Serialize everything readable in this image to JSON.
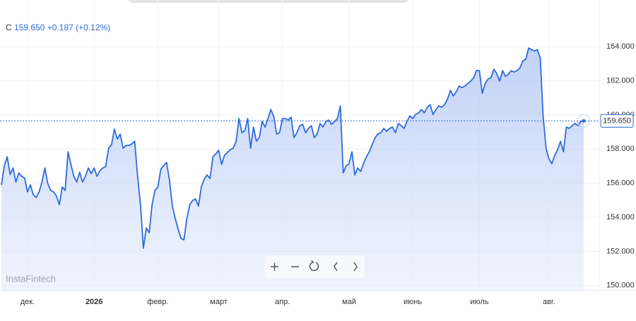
{
  "header": {
    "symbol": "C",
    "price": "159.650",
    "change": "+0.187",
    "change_pct": "(+0.12%)"
  },
  "watermark": "InstaFintech",
  "chart_data": {
    "type": "area",
    "series": [
      {
        "color": "#2f6bdc",
        "values": [
          155.9,
          157.02,
          157.55,
          156.52,
          156.89,
          156.07,
          156.6,
          156.4,
          156.31,
          155.49,
          155.9,
          155.32,
          155.16,
          155.49,
          156.07,
          156.89,
          155.98,
          155.57,
          155.49,
          155.24,
          154.74,
          155.78,
          155.57,
          157.84,
          157.1,
          156.4,
          156.07,
          156.64,
          156.07,
          156.4,
          156.89,
          156.56,
          156.89,
          156.4,
          156.73,
          156.89,
          156.98,
          158.05,
          158.26,
          159.17,
          158.59,
          158.88,
          158.05,
          158.21,
          158.21,
          158.3,
          158.46,
          156.4,
          154.74,
          152.18,
          153.38,
          153.09,
          154.74,
          155.57,
          155.78,
          156.81,
          157.02,
          157.22,
          156.19,
          154.66,
          153.92,
          153.3,
          152.76,
          152.68,
          153.92,
          154.74,
          154.99,
          155.07,
          154.66,
          155.78,
          156.23,
          156.48,
          156.27,
          157.55,
          157.72,
          157.93,
          157.1,
          157.64,
          157.8,
          157.97,
          158.05,
          158.46,
          159.79,
          158.96,
          159.08,
          159.79,
          158.05,
          159.29,
          158.46,
          158.67,
          159.62,
          159.29,
          159.79,
          160.32,
          159.91,
          158.88,
          158.96,
          159.79,
          159.79,
          159.7,
          159.87,
          158.67,
          158.96,
          159.37,
          159.45,
          158.96,
          159.21,
          159.37,
          158.67,
          158.88,
          159.5,
          159.29,
          159.62,
          159.7,
          159.45,
          159.62,
          159.79,
          160.53,
          156.6,
          157.02,
          157.14,
          157.84,
          156.48,
          156.89,
          156.69,
          157.14,
          157.55,
          157.84,
          158.26,
          158.67,
          158.88,
          158.96,
          159.21,
          159.04,
          159.21,
          159.29,
          158.96,
          159.5,
          159.37,
          159.21,
          159.62,
          159.95,
          159.79,
          160.03,
          160.12,
          160.32,
          160.12,
          160.45,
          160.61,
          160.03,
          160.32,
          160.53,
          160.45,
          160.61,
          160.94,
          161.44,
          161.11,
          161.36,
          161.69,
          161.6,
          161.69,
          161.85,
          161.98,
          162.18,
          162.6,
          162.6,
          161.27,
          161.85,
          162.1,
          162.18,
          162.68,
          162.43,
          161.98,
          162.6,
          162.26,
          162.39,
          162.6,
          162.51,
          162.6,
          162.76,
          163.17,
          163.26,
          163.92,
          163.83,
          163.75,
          163.83,
          163.34,
          159.91,
          158.05,
          157.43,
          157.14,
          157.64,
          157.97,
          158.46,
          157.84,
          159.29,
          159.21,
          159.37,
          159.5,
          159.37,
          159.62,
          159.65
        ]
      }
    ],
    "xlim": [
      0,
      201
    ],
    "xticks": [
      {
        "value": 9,
        "label": "дек."
      },
      {
        "value": 32,
        "label": "2026"
      },
      {
        "value": 54,
        "label": "февр."
      },
      {
        "value": 75,
        "label": "март"
      },
      {
        "value": 97,
        "label": "апр."
      },
      {
        "value": 120,
        "label": "май"
      },
      {
        "value": 142,
        "label": "июнь"
      },
      {
        "value": 165,
        "label": "июль"
      },
      {
        "value": 189,
        "label": "авг."
      }
    ],
    "ylim": [
      149.7,
      165
    ],
    "yticks": [
      {
        "value": 150,
        "label": "150.000"
      },
      {
        "value": 152,
        "label": "152.000"
      },
      {
        "value": 154,
        "label": "154.000"
      },
      {
        "value": 156,
        "label": "156.000"
      },
      {
        "value": 158,
        "label": "158.000"
      },
      {
        "value": 160,
        "label": "160.000"
      },
      {
        "value": 162,
        "label": "162.000"
      },
      {
        "value": 164,
        "label": "164.000"
      }
    ],
    "price_line": {
      "value": 159.65,
      "label": "159.650"
    },
    "grid": true
  }
}
